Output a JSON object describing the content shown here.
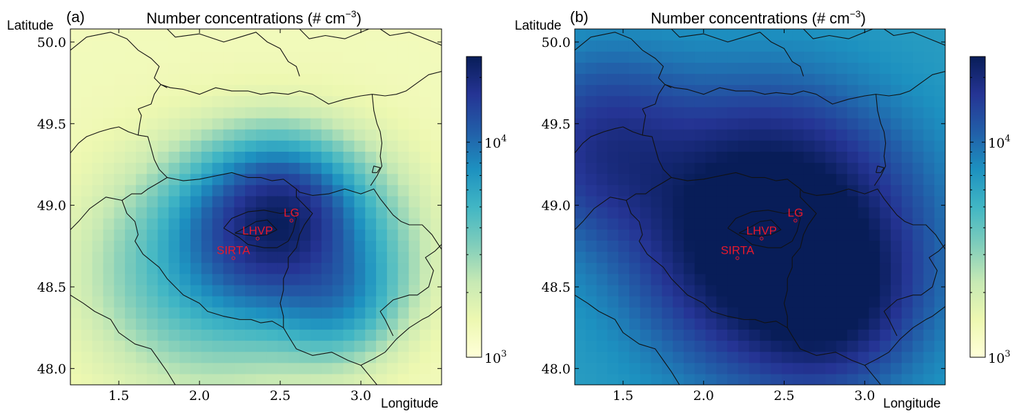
{
  "chart_data": [
    {
      "type": "heatmap",
      "panel": "(a)",
      "title": "Number concentrations (# cm",
      "title_unit_exp": "−3",
      "title_close": ")",
      "xlabel": "Longitude",
      "ylabel": "Latitude",
      "xlim": [
        1.2,
        3.5
      ],
      "ylim": [
        47.9,
        50.08
      ],
      "xticks": [
        1.5,
        2.0,
        2.5,
        3.0
      ],
      "xtick_labels": [
        "1.5",
        "2.0",
        "2.5",
        "3.0"
      ],
      "yticks": [
        48.0,
        48.5,
        49.0,
        49.5,
        50.0
      ],
      "ytick_labels": [
        "48.0",
        "48.5",
        "49.0",
        "49.5",
        "50.0"
      ],
      "colorbar": {
        "scale": "log",
        "range": [
          1000,
          25000
        ],
        "colormap": "YlGnBu",
        "ticks": [
          1000,
          10000
        ],
        "tick_bases": [
          "10",
          "10"
        ],
        "tick_exps": [
          "3",
          "4"
        ]
      },
      "sites": [
        {
          "name": "LG",
          "lon": 2.57,
          "lat": 48.94
        },
        {
          "name": "LHVP",
          "lon": 2.36,
          "lat": 48.83
        },
        {
          "name": "SIRTA",
          "lon": 2.21,
          "lat": 48.71
        }
      ],
      "hotspots": [
        {
          "lon": 2.35,
          "lat": 48.86,
          "value": 11000,
          "spread": 0.28
        },
        {
          "lon": 2.55,
          "lat": 48.95,
          "value": 9000,
          "spread": 0.22
        },
        {
          "lon": 2.7,
          "lat": 48.75,
          "value": 6000,
          "spread": 0.35
        },
        {
          "lon": 2.0,
          "lat": 48.6,
          "value": 4000,
          "spread": 0.4
        },
        {
          "lon": 2.85,
          "lat": 48.45,
          "value": 4500,
          "spread": 0.22
        }
      ],
      "background_value": 1350
    },
    {
      "type": "heatmap",
      "panel": "(b)",
      "title": "Number concentrations (# cm",
      "title_unit_exp": "−3",
      "title_close": ")",
      "xlabel": "Longitude",
      "ylabel": "Latitude",
      "xlim": [
        1.2,
        3.5
      ],
      "ylim": [
        47.9,
        50.08
      ],
      "xticks": [
        1.5,
        2.0,
        2.5,
        3.0
      ],
      "xtick_labels": [
        "1.5",
        "2.0",
        "2.5",
        "3.0"
      ],
      "yticks": [
        48.0,
        48.5,
        49.0,
        49.5,
        50.0
      ],
      "ytick_labels": [
        "48.0",
        "48.5",
        "49.0",
        "49.5",
        "50.0"
      ],
      "colorbar": {
        "scale": "log",
        "range": [
          1000,
          25000
        ],
        "colormap": "YlGnBu",
        "ticks": [
          1000,
          10000
        ],
        "tick_bases": [
          "10",
          "10"
        ],
        "tick_exps": [
          "3",
          "4"
        ]
      },
      "sites": [
        {
          "name": "LG",
          "lon": 2.57,
          "lat": 48.94
        },
        {
          "name": "LHVP",
          "lon": 2.36,
          "lat": 48.83
        },
        {
          "name": "SIRTA",
          "lon": 2.21,
          "lat": 48.71
        }
      ],
      "hotspots": [
        {
          "lon": 2.3,
          "lat": 48.9,
          "value": 20000,
          "spread": 0.45
        },
        {
          "lon": 2.75,
          "lat": 48.45,
          "value": 16000,
          "spread": 0.3
        },
        {
          "lon": 1.4,
          "lat": 49.35,
          "value": 13000,
          "spread": 0.35
        },
        {
          "lon": 2.6,
          "lat": 48.75,
          "value": 16000,
          "spread": 0.5
        }
      ],
      "background_value": 6500
    }
  ],
  "colors": {
    "colormap_stops": [
      "#ffffd9",
      "#edf8b1",
      "#c7e9b4",
      "#7fcdbb",
      "#41b6c4",
      "#1d91c0",
      "#225ea8",
      "#253494",
      "#081d58"
    ],
    "site_label": "#e8192c",
    "boundary": "#111111"
  }
}
